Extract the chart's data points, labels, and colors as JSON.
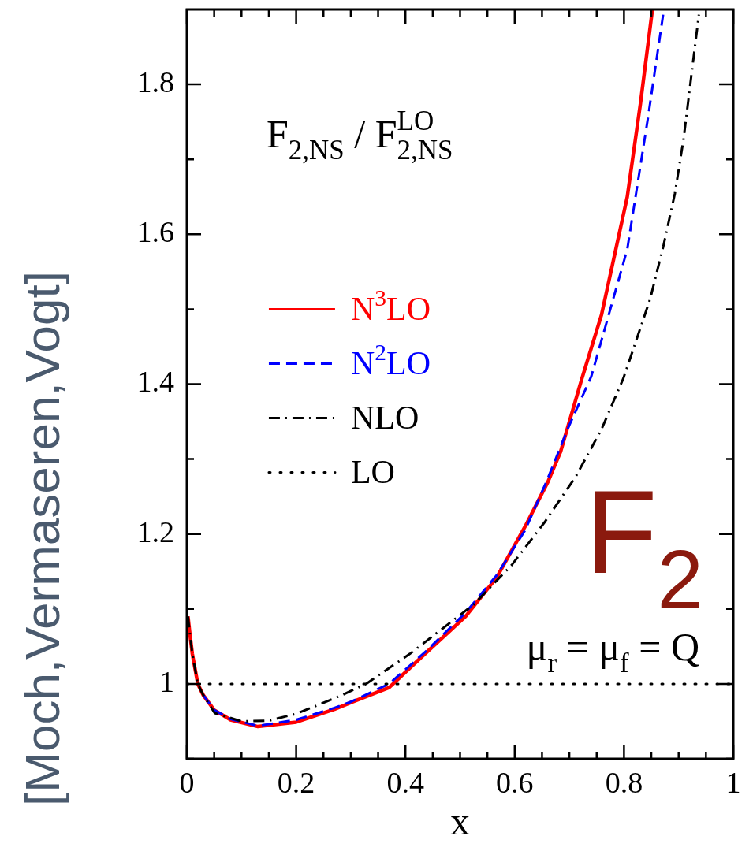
{
  "chart_data": {
    "type": "line",
    "xlabel": "x",
    "ylabel": "[Moch,Vermaseren,Vogt]",
    "annotations": [
      "F$_{2,NS}$ / F$_{2,NS}$$^{LO}$",
      "F$_{2}$",
      "μ$_{r}$ = μ$_{f}$ = Q"
    ],
    "xlim": [
      0,
      1
    ],
    "ylim": [
      0.9,
      1.9
    ],
    "xticks": [
      0,
      {
        "value": 0.05,
        "label": null
      },
      {
        "value": 0.1,
        "label": null
      },
      {
        "value": 0.15,
        "label": null
      },
      0.2,
      {
        "value": 0.25,
        "label": null
      },
      {
        "value": 0.3,
        "label": null
      },
      {
        "value": 0.35,
        "label": null
      },
      0.4,
      {
        "value": 0.45,
        "label": null
      },
      {
        "value": 0.5,
        "label": null
      },
      {
        "value": 0.55,
        "label": null
      },
      0.6,
      {
        "value": 0.65,
        "label": null
      },
      {
        "value": 0.7,
        "label": null
      },
      {
        "value": 0.75,
        "label": null
      },
      0.8,
      {
        "value": 0.85,
        "label": null
      },
      {
        "value": 0.9,
        "label": null
      },
      {
        "value": 0.95,
        "label": null
      },
      1
    ],
    "yticks": [
      {
        "value": 0.9,
        "label": null
      },
      1,
      {
        "value": 1.1,
        "label": null
      },
      1.2,
      {
        "value": 1.3,
        "label": null
      },
      1.4,
      {
        "value": 1.5,
        "label": null
      },
      1.6,
      {
        "value": 1.7,
        "label": null
      },
      1.8
    ],
    "grid": false,
    "legend": "left",
    "marker": "none",
    "series": [
      {
        "name": "N$^{3}$LO",
        "color": "#ff0000",
        "line_style": "solid",
        "x": [
          0.002,
          0.005,
          0.01,
          0.02,
          0.03,
          0.05,
          0.08,
          0.13,
          0.2,
          0.27,
          0.3,
          0.37,
          0.44,
          0.51,
          0.567,
          0.619,
          0.661,
          0.684,
          0.722,
          0.759,
          0.806,
          0.83,
          0.852
        ],
        "values": [
          1.09,
          1.07,
          1.04,
          1.0,
          0.985,
          0.965,
          0.952,
          0.943,
          0.949,
          0.966,
          0.975,
          0.995,
          1.043,
          1.09,
          1.142,
          1.21,
          1.27,
          1.31,
          1.405,
          1.493,
          1.65,
          1.774,
          1.9
        ]
      },
      {
        "name": "N$^{2}$LO",
        "color": "#0000ff",
        "line_style": "dashed",
        "x": [
          0.03,
          0.05,
          0.08,
          0.13,
          0.2,
          0.27,
          0.3,
          0.37,
          0.44,
          0.51,
          0.567,
          0.619,
          0.661,
          0.698,
          0.74,
          0.806,
          0.844,
          0.873
        ],
        "values": [
          0.985,
          0.965,
          0.953,
          0.944,
          0.952,
          0.968,
          0.976,
          1.0,
          1.045,
          1.095,
          1.145,
          1.205,
          1.275,
          1.342,
          1.41,
          1.58,
          1.756,
          1.9
        ]
      },
      {
        "name": "NLO",
        "color": "#000000",
        "line_style": "dashdot",
        "x": [
          0.002,
          0.005,
          0.01,
          0.02,
          0.03,
          0.051,
          0.1,
          0.15,
          0.2,
          0.281,
          0.328,
          0.408,
          0.525,
          0.595,
          0.655,
          0.712,
          0.759,
          0.799,
          0.831,
          0.848,
          0.872,
          0.893,
          0.909,
          0.937
        ],
        "values": [
          1.09,
          1.07,
          1.04,
          1.0,
          0.985,
          0.961,
          0.95,
          0.951,
          0.96,
          0.984,
          1.0,
          1.04,
          1.106,
          1.159,
          1.216,
          1.277,
          1.34,
          1.408,
          1.477,
          1.514,
          1.584,
          1.654,
          1.727,
          1.893
        ]
      },
      {
        "name": "LO",
        "color": "#000000",
        "line_style": "dotted",
        "x": [
          0,
          1
        ],
        "values": [
          1,
          1
        ]
      }
    ]
  }
}
